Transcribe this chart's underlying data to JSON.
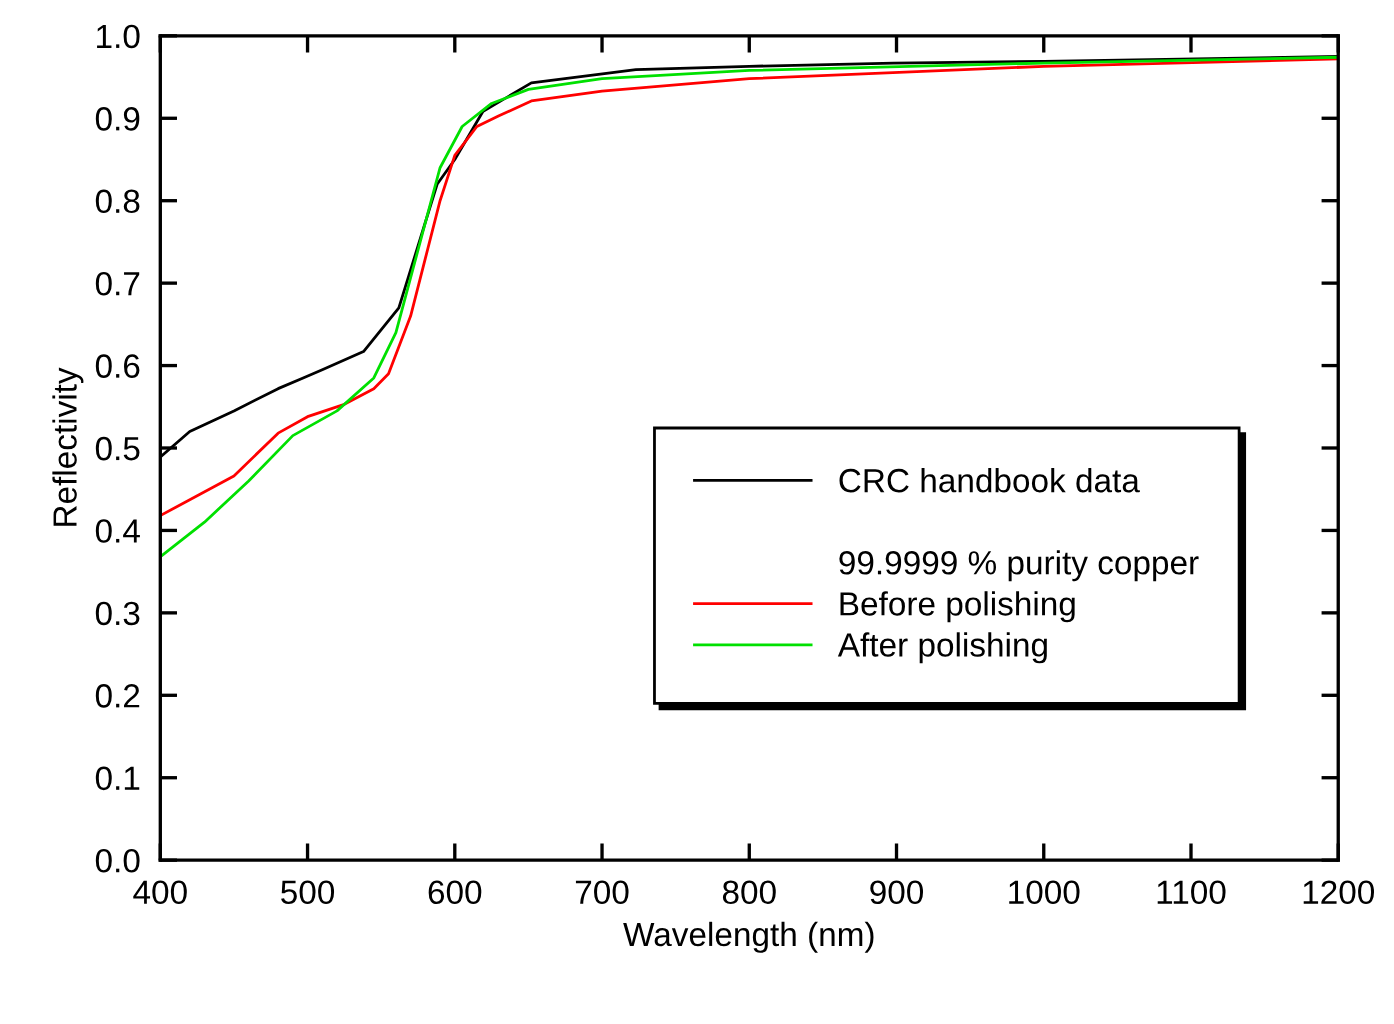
{
  "chart_data": {
    "type": "line",
    "xlabel": "Wavelength (nm)",
    "ylabel": "Reflectivity",
    "xlim": [
      400,
      1200
    ],
    "xticks": [
      400,
      500,
      600,
      700,
      800,
      900,
      1000,
      1100,
      1200
    ],
    "ylim": [
      0.0,
      1.0
    ],
    "yticks": [
      {
        "value": 0,
        "label": "0.0"
      },
      0.1,
      0.2,
      0.3,
      0.4,
      0.5,
      0.6,
      0.7,
      0.8,
      0.9,
      {
        "value": 1,
        "label": "1.0"
      }
    ],
    "grid": false,
    "legend": "bottom right",
    "legend_title": "99.9999 % purity copper",
    "series": [
      {
        "name": "CRC handbook data",
        "color": "#000000",
        "x": [
          400,
          420,
          450,
          480,
          497,
          510,
          538,
          562,
          588,
          600,
          619,
          652,
          723,
          800,
          898,
          1000,
          1200
        ],
        "values": [
          0.489,
          0.52,
          0.545,
          0.572,
          0.585,
          0.595,
          0.617,
          0.67,
          0.82,
          0.85,
          0.908,
          0.943,
          0.959,
          0.963,
          0.967,
          0.969,
          0.975
        ]
      },
      {
        "name": "Before polishing",
        "color": "#ff0000",
        "x": [
          400,
          450,
          480,
          500,
          525,
          545,
          555,
          570,
          580,
          590,
          600,
          615,
          630,
          652,
          700,
          800,
          1000,
          1200
        ],
        "values": [
          0.418,
          0.466,
          0.518,
          0.538,
          0.553,
          0.572,
          0.59,
          0.66,
          0.73,
          0.8,
          0.855,
          0.89,
          0.903,
          0.921,
          0.933,
          0.948,
          0.963,
          0.972
        ]
      },
      {
        "name": "After polishing",
        "color": "#00e000",
        "x": [
          400,
          430,
          460,
          490,
          520,
          545,
          560,
          575,
          590,
          605,
          625,
          650,
          700,
          800,
          1000,
          1200
        ],
        "values": [
          0.368,
          0.41,
          0.46,
          0.515,
          0.545,
          0.585,
          0.64,
          0.74,
          0.84,
          0.89,
          0.918,
          0.935,
          0.948,
          0.958,
          0.967,
          0.974
        ]
      }
    ]
  }
}
